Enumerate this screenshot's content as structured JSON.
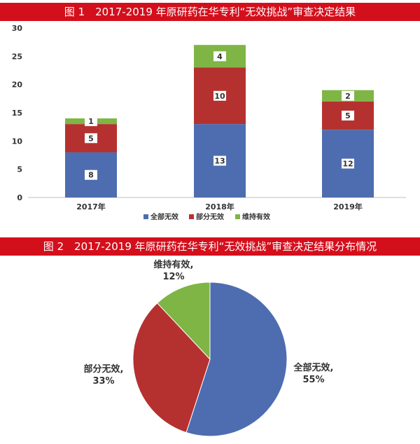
{
  "figure1": {
    "title": "图 1　2017-2019 年原研药在华专利“无效挑战”审查决定结果"
  },
  "figure2": {
    "title": "图 2　2017-2019 年原研药在华专利“无效挑战”审查决定结果分布情况"
  },
  "colors": {
    "banner": "#d40f1c",
    "blue": "#4e6db0",
    "red": "#b5312f",
    "green": "#7fb545"
  },
  "chart_data": [
    {
      "type": "bar",
      "stacked": true,
      "categories": [
        "2017年",
        "2018年",
        "2019年"
      ],
      "series": [
        {
          "name": "全部无效",
          "values": [
            8,
            13,
            12
          ],
          "color": "#4e6db0"
        },
        {
          "name": "部分无效",
          "values": [
            5,
            10,
            5
          ],
          "color": "#b5312f"
        },
        {
          "name": "维持有效",
          "values": [
            1,
            4,
            2
          ],
          "color": "#7fb545"
        }
      ],
      "ylim": [
        0,
        30
      ],
      "yticks": [
        0,
        5,
        10,
        15,
        20,
        25,
        30
      ],
      "ytick_labels": [
        "0",
        "5",
        "10",
        "15",
        "20",
        "25",
        "30"
      ],
      "grid": false,
      "legend_position": "bottom"
    },
    {
      "type": "pie",
      "slices": [
        {
          "label": "全部无效,",
          "percent_label": "55%",
          "value": 55,
          "color": "#4e6db0"
        },
        {
          "label": "部分无效,",
          "percent_label": "33%",
          "value": 33,
          "color": "#b5312f"
        },
        {
          "label": "维持有效,",
          "percent_label": "12%",
          "value": 12,
          "color": "#7fb545"
        }
      ]
    }
  ]
}
